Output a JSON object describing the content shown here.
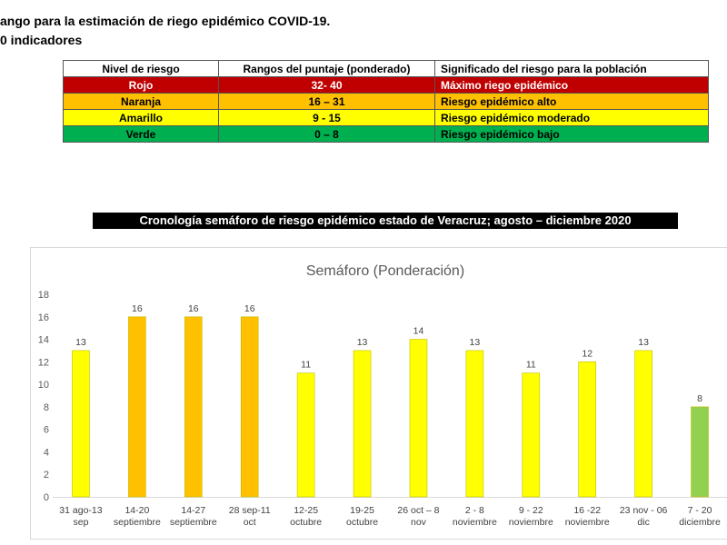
{
  "headings": {
    "line1": "ango para la estimación de riego epidémico COVID-19.",
    "line2": "0 indicadores"
  },
  "legend_table": {
    "headers": [
      "Nivel de riesgo",
      "Rangos del puntaje (ponderado)",
      "Significado del riesgo para la población"
    ],
    "rows": [
      {
        "level": "Rojo",
        "range": "32- 40",
        "meaning": "Máximo riego epidémico",
        "color": "#c00000",
        "text_color": "#ffffff"
      },
      {
        "level": "Naranja",
        "range": "16 – 31",
        "meaning": "Riesgo epidémico alto",
        "color": "#ffc000",
        "text_color": "#000000"
      },
      {
        "level": "Amarillo",
        "range": "9 - 15",
        "meaning": "Riesgo epidémico moderado",
        "color": "#ffff00",
        "text_color": "#000000"
      },
      {
        "level": "Verde",
        "range": "0 – 8",
        "meaning": "Riesgo epidémico bajo",
        "color": "#00b050",
        "text_color": "#000000"
      }
    ]
  },
  "banner": "Cronología semáforo de riesgo epidémico estado de Veracruz;  agosto – diciembre 2020",
  "chart_data": {
    "type": "bar",
    "title": "Semáforo (Ponderación)",
    "xlabel": "",
    "ylabel": "",
    "ylim": [
      0,
      18
    ],
    "yticks": [
      0,
      2,
      4,
      6,
      8,
      10,
      12,
      14,
      16,
      18
    ],
    "grid": false,
    "legend": "none",
    "categories": [
      [
        "31 ago-13",
        "sep"
      ],
      [
        "14-20",
        "septiembre"
      ],
      [
        "14-27",
        "septiembre"
      ],
      [
        "28 sep-11",
        "oct"
      ],
      [
        "12-25",
        "octubre"
      ],
      [
        "19-25",
        "octubre"
      ],
      [
        "26 oct – 8",
        "nov"
      ],
      [
        "2 - 8",
        "noviembre"
      ],
      [
        "9 - 22",
        "noviembre"
      ],
      [
        "16 -22",
        "noviembre"
      ],
      [
        "23 nov - 06",
        "dic"
      ],
      [
        "7 - 20",
        "diciembre"
      ]
    ],
    "values": [
      13,
      16,
      16,
      16,
      11,
      13,
      14,
      13,
      11,
      12,
      13,
      8
    ],
    "bar_colors": [
      "#ffff00",
      "#ffc000",
      "#ffc000",
      "#ffc000",
      "#ffff00",
      "#ffff00",
      "#ffff00",
      "#ffff00",
      "#ffff00",
      "#ffff00",
      "#ffff00",
      "#92d050"
    ]
  }
}
